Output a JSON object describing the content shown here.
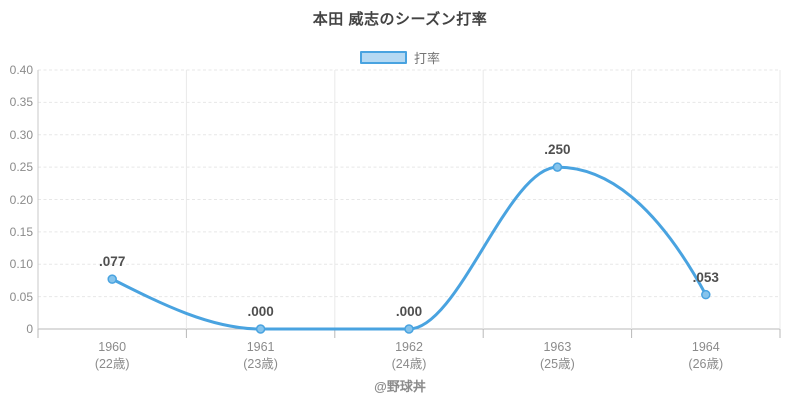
{
  "title": "本田 威志のシーズン打率",
  "legend": {
    "label": "打率"
  },
  "footer": {
    "credit": "@野球丼"
  },
  "colors": {
    "line": "#49a3e0",
    "marker_fill": "#86c4ec",
    "legend_fill": "#b5d9f3",
    "legend_border": "#49a3e0",
    "grid": "#e7e7e7",
    "vgrid": "#e9e9e9",
    "axis": "#b8b8b8",
    "yaxis": "#c9c9c9",
    "tick_label": "#8b8b8b",
    "data_label": "#4f4f4f"
  },
  "chart_data": {
    "type": "line",
    "curve": "monotone",
    "title": "本田 威志のシーズン打率",
    "series": [
      {
        "name": "打率",
        "values": [
          0.077,
          0.0,
          0.0,
          0.25,
          0.053
        ]
      }
    ],
    "value_labels": [
      ".077",
      ".000",
      ".000",
      ".250",
      ".053"
    ],
    "categories": [
      {
        "year": "1960",
        "age": "(22歳)"
      },
      {
        "year": "1961",
        "age": "(23歳)"
      },
      {
        "year": "1962",
        "age": "(24歳)"
      },
      {
        "year": "1963",
        "age": "(25歳)"
      },
      {
        "year": "1964",
        "age": "(26歳)"
      }
    ],
    "y_ticks": [
      {
        "label": "0.40",
        "value": 0.4
      },
      {
        "label": "0.35",
        "value": 0.35
      },
      {
        "label": "0.30",
        "value": 0.3
      },
      {
        "label": "0.25",
        "value": 0.25
      },
      {
        "label": "0.20",
        "value": 0.2
      },
      {
        "label": "0.15",
        "value": 0.15
      },
      {
        "label": "0.10",
        "value": 0.1
      },
      {
        "label": "0.05",
        "value": 0.05
      },
      {
        "label": "0",
        "value": 0.0
      }
    ],
    "ylim": [
      0,
      0.4
    ],
    "grid": true,
    "legend_position": "top"
  }
}
